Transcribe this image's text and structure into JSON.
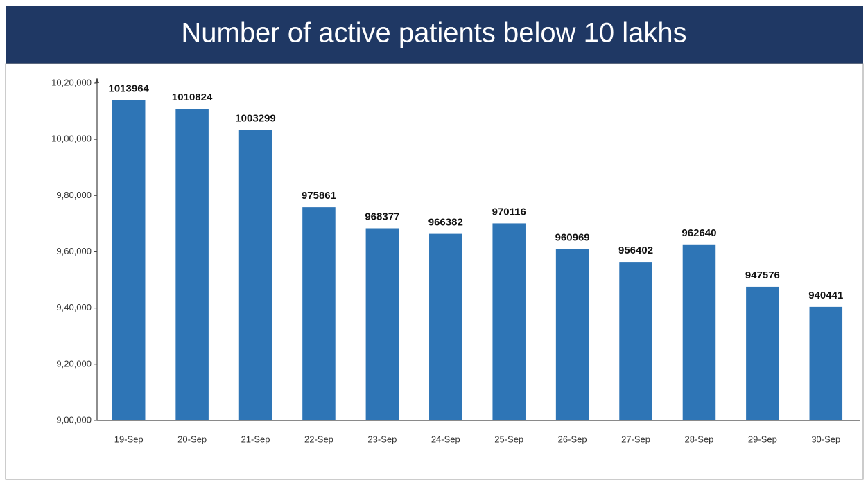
{
  "chart_data": {
    "type": "bar",
    "title": "Number of active patients below 10 lakhs",
    "categories": [
      "19-Sep",
      "20-Sep",
      "21-Sep",
      "22-Sep",
      "23-Sep",
      "24-Sep",
      "25-Sep",
      "26-Sep",
      "27-Sep",
      "28-Sep",
      "29-Sep",
      "30-Sep"
    ],
    "values": [
      1013964,
      1010824,
      1003299,
      975861,
      968377,
      966382,
      970116,
      960969,
      956402,
      962640,
      947576,
      940441
    ],
    "color": "#2e75b6",
    "ylim": [
      900000,
      1020000
    ],
    "yticks": [
      {
        "value": 900000,
        "label": "9,00,000"
      },
      {
        "value": 920000,
        "label": "9,20,000"
      },
      {
        "value": 940000,
        "label": "9,40,000"
      },
      {
        "value": 960000,
        "label": "9,60,000"
      },
      {
        "value": 980000,
        "label": "9,80,000"
      },
      {
        "value": 1000000,
        "label": "10,00,000"
      },
      {
        "value": 1020000,
        "label": "10,20,000"
      }
    ],
    "grid": false
  }
}
